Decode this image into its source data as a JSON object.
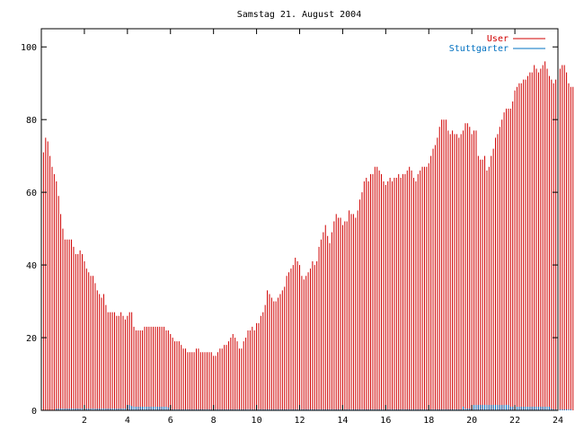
{
  "chart_data": {
    "type": "bar",
    "title": "Samstag 21. August 2004",
    "xlabel": "",
    "ylabel": "",
    "xlim": [
      0,
      24
    ],
    "ylim": [
      0,
      105
    ],
    "x_ticks": [
      2,
      4,
      6,
      8,
      10,
      12,
      14,
      16,
      18,
      20,
      22,
      24
    ],
    "x_tick_labels": [
      "2",
      "4",
      "6",
      "8",
      "10",
      "12",
      "14",
      "16",
      "18",
      "20",
      "22",
      "24"
    ],
    "y_ticks": [
      0,
      20,
      40,
      60,
      80,
      100
    ],
    "y_tick_labels": [
      "0",
      "20",
      "40",
      "60",
      "80",
      "100"
    ],
    "grid": false,
    "legend_position": "top-right",
    "series": [
      {
        "name": "User",
        "color": "#d00000",
        "style": "impulses",
        "x_start": 0,
        "x_step": 0.1,
        "values": [
          75,
          71,
          75,
          74,
          70,
          67,
          65,
          63,
          59,
          54,
          50,
          47,
          47,
          47,
          47,
          45,
          43,
          43,
          44,
          43,
          41,
          39,
          38,
          37,
          37,
          35,
          33,
          32,
          31,
          32,
          29,
          27,
          27,
          27,
          27,
          26,
          26,
          27,
          26,
          25,
          26,
          27,
          27,
          23,
          22,
          22,
          22,
          22,
          23,
          23,
          23,
          23,
          23,
          23,
          23,
          23,
          23,
          23,
          22,
          22,
          21,
          20,
          19,
          19,
          19,
          18,
          17,
          17,
          16,
          16,
          16,
          16,
          17,
          17,
          16,
          16,
          16,
          16,
          16,
          16,
          15,
          15,
          16,
          17,
          17,
          18,
          18,
          19,
          20,
          21,
          20,
          19,
          17,
          17,
          19,
          20,
          22,
          22,
          23,
          22,
          24,
          24,
          26,
          27,
          29,
          33,
          32,
          31,
          30,
          30,
          31,
          32,
          33,
          34,
          37,
          38,
          39,
          40,
          42,
          41,
          40,
          37,
          36,
          37,
          38,
          39,
          41,
          40,
          41,
          45,
          47,
          49,
          51,
          48,
          46,
          49,
          52,
          54,
          53,
          53,
          51,
          52,
          52,
          55,
          54,
          54,
          53,
          55,
          58,
          60,
          63,
          64,
          63,
          65,
          65,
          67,
          67,
          66,
          65,
          63,
          62,
          63,
          64,
          63,
          64,
          64,
          65,
          64,
          65,
          65,
          66,
          67,
          66,
          64,
          63,
          65,
          66,
          67,
          67,
          67,
          68,
          70,
          72,
          73,
          75,
          78,
          80,
          80,
          80,
          77,
          76,
          77,
          76,
          76,
          75,
          76,
          77,
          79,
          79,
          78,
          76,
          77,
          77,
          70,
          69,
          69,
          70,
          66,
          67,
          70,
          72,
          75,
          76,
          78,
          80,
          82,
          83,
          83,
          83,
          85,
          88,
          89,
          90,
          90,
          91,
          91,
          92,
          93,
          93,
          95,
          94,
          93,
          94,
          95,
          96,
          94,
          92,
          91,
          90,
          91,
          93,
          94,
          95,
          95,
          93,
          90,
          89,
          89
        ]
      },
      {
        "name": "Stuttgarter",
        "color": "#0070c0",
        "style": "impulses",
        "x_start": 0,
        "x_step": 0.1,
        "values": [
          0,
          0,
          0,
          0,
          0,
          0,
          0,
          0.5,
          0.5,
          0.5,
          0.5,
          0.5,
          0.5,
          0.5,
          0.5,
          0.5,
          0.5,
          0.5,
          0.5,
          0.5,
          0.5,
          0.5,
          0.5,
          0.5,
          0.5,
          0.5,
          0.5,
          0.5,
          0.5,
          0.5,
          0.5,
          0.5,
          0.5,
          0.5,
          0.5,
          0.5,
          0.5,
          0.5,
          0.5,
          0.5,
          1.5,
          1.5,
          1.2,
          1.0,
          1.0,
          1.0,
          1.0,
          1.0,
          1.0,
          1.0,
          1.0,
          1.0,
          1.0,
          1.0,
          1.0,
          1.0,
          1.0,
          1.0,
          1.0,
          0.8,
          0.3,
          0.3,
          0.3,
          0.3,
          0.3,
          0.3,
          0.3,
          0.3,
          0.3,
          0.3,
          0.3,
          0.3,
          0.3,
          0.3,
          0.3,
          0.3,
          0.3,
          0.3,
          0.3,
          0.3,
          0.3,
          0.3,
          0.3,
          0.3,
          0.3,
          0.3,
          0.3,
          0.3,
          0.3,
          0.3,
          0.3,
          0.3,
          0.3,
          0.3,
          0.3,
          0.3,
          0.3,
          0.3,
          0.3,
          0.3,
          0.3,
          0.3,
          0.3,
          0.3,
          0.3,
          0.3,
          0.3,
          0.3,
          0.3,
          0.3,
          0.3,
          0.3,
          0.3,
          0.3,
          0.3,
          0.3,
          0.3,
          0.3,
          0.3,
          0.3,
          0.3,
          0.3,
          0.3,
          0.3,
          0.3,
          0.3,
          0.3,
          0.3,
          0.3,
          0.3,
          0.3,
          0.3,
          0.3,
          0.3,
          0.3,
          0.3,
          0.3,
          0.3,
          0.3,
          0.3,
          0.3,
          0.3,
          0.3,
          0.3,
          0.3,
          0.3,
          0.3,
          0.3,
          0.3,
          0.3,
          0.3,
          0.3,
          0.3,
          0.3,
          0.3,
          0.3,
          0.3,
          0.3,
          0.3,
          0.3,
          0.3,
          0.3,
          0.3,
          0.3,
          0.3,
          0.3,
          0.3,
          0.3,
          0.3,
          0.3,
          0.3,
          0.3,
          0.3,
          0.3,
          0.3,
          0.3,
          0.3,
          0.3,
          0.3,
          0.3,
          0.3,
          0.3,
          0.3,
          0.3,
          0.3,
          0.3,
          0.3,
          0.3,
          0.3,
          0.3,
          0.3,
          0.3,
          0.3,
          0.3,
          0.3,
          0.3,
          1.0,
          0.5,
          0.5,
          0.5,
          0.5,
          1.5,
          1.5,
          1.5,
          1.5,
          1.5,
          1.5,
          1.5,
          1.5,
          1.5,
          1.5,
          1.5,
          1.5,
          1.5,
          1.5,
          1.5,
          1.5,
          1.5,
          1.0,
          1.0,
          1.0,
          1.0,
          1.0,
          1.0,
          1.0,
          1.0,
          1.0,
          1.0,
          1.0,
          1.0,
          1.0,
          1.0,
          1.0,
          1.0,
          1.0,
          1.0,
          1.0,
          0.5,
          0.3,
          0.3,
          0.3,
          0.3,
          0.3,
          0.3,
          0.3,
          0.3,
          0.3
        ]
      }
    ]
  }
}
